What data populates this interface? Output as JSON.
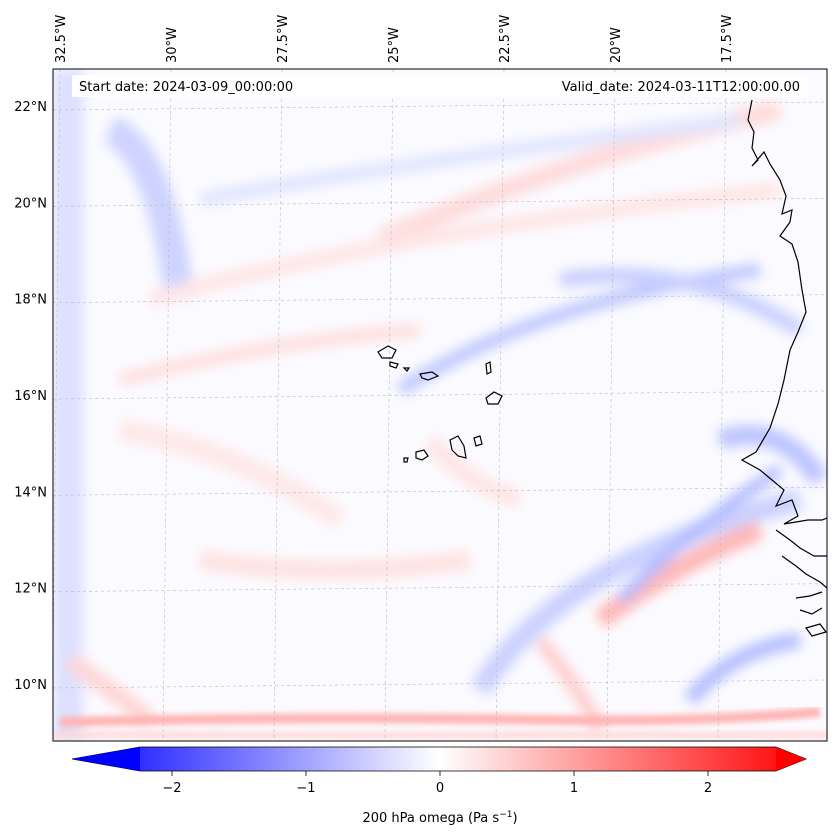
{
  "map": {
    "start_date_label": "Start date: 2024-03-09_00:00:00",
    "valid_date_label": "Valid_date: 2024-03-11T12:00:00.00",
    "colors": {
      "negative": "#0000ff",
      "neutral": "#ffffff",
      "positive": "#ff0000",
      "coastline": "#000000",
      "gridline": "#bbbbbb"
    },
    "lon_ticks": [
      {
        "value": -32.5,
        "label": "32.5°W"
      },
      {
        "value": -30.0,
        "label": "30°W"
      },
      {
        "value": -27.5,
        "label": "27.5°W"
      },
      {
        "value": -25.0,
        "label": "25°W"
      },
      {
        "value": -22.5,
        "label": "22.5°W"
      },
      {
        "value": -20.0,
        "label": "20°W"
      },
      {
        "value": -17.5,
        "label": "17.5°W"
      }
    ],
    "lat_ticks": [
      {
        "value": 10,
        "label": "10°N"
      },
      {
        "value": 12,
        "label": "12°N"
      },
      {
        "value": 14,
        "label": "14°N"
      },
      {
        "value": 16,
        "label": "16°N"
      },
      {
        "value": 18,
        "label": "18°N"
      },
      {
        "value": 20,
        "label": "20°N"
      },
      {
        "value": 22,
        "label": "22°N"
      }
    ],
    "field_name": "200 hPa omega",
    "field_unit": "Pa s",
    "unit_exponent": "−1"
  },
  "colorbar": {
    "ticks": [
      {
        "value": -2,
        "label": "−2"
      },
      {
        "value": -1,
        "label": "−1"
      },
      {
        "value": 0,
        "label": "0"
      },
      {
        "value": 1,
        "label": "1"
      },
      {
        "value": 2,
        "label": "2"
      }
    ],
    "vmin": -2.5,
    "vmax": 2.5,
    "extend": "both"
  }
}
